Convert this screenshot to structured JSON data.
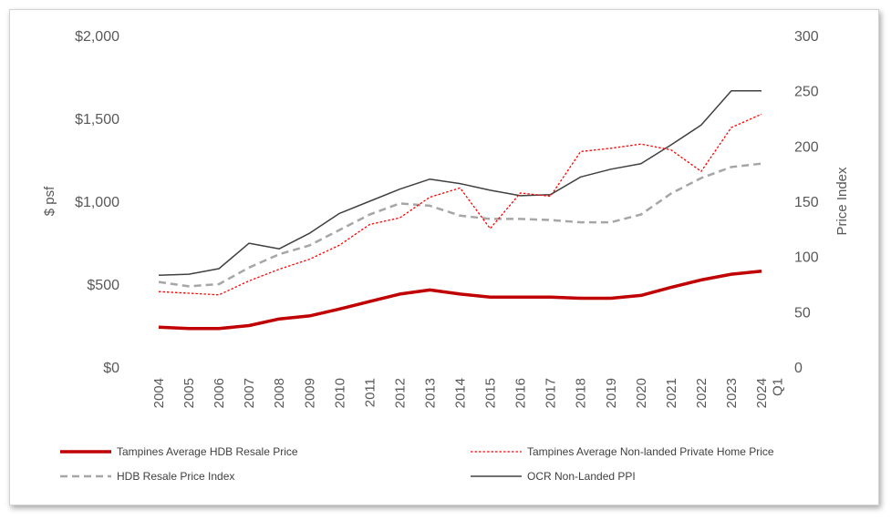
{
  "chart_data": {
    "type": "line",
    "categories": [
      "2004",
      "2005",
      "2006",
      "2007",
      "2008",
      "2009",
      "2010",
      "2011",
      "2012",
      "2013",
      "2014",
      "2015",
      "2016",
      "2017",
      "2018",
      "2019",
      "2020",
      "2021",
      "2022",
      "2023",
      "Q1 2024"
    ],
    "ylabel_left": "$ psf",
    "ylabel_right": "Price Index",
    "ylim_left": [
      0,
      2000
    ],
    "ylim_right": [
      0,
      300
    ],
    "yticks_left": [
      "$0",
      "$500",
      "$1,000",
      "$1,500",
      "$2,000"
    ],
    "yticks_right": [
      "0",
      "50",
      "100",
      "150",
      "200",
      "250",
      "300"
    ],
    "grid": false,
    "legend_position": "bottom",
    "series": [
      {
        "name": "Tampines Average HDB Resale Price",
        "axis": "left",
        "color": "#c00000",
        "style": "solid-thick",
        "values": [
          240,
          232,
          232,
          250,
          290,
          308,
          350,
          395,
          440,
          465,
          440,
          422,
          422,
          422,
          415,
          415,
          432,
          480,
          525,
          560,
          578
        ]
      },
      {
        "name": "Tampines Average Non-landed Private Home Price",
        "axis": "left",
        "color": "#ff0000",
        "style": "dotted",
        "values": [
          455,
          445,
          435,
          520,
          590,
          650,
          735,
          860,
          900,
          1025,
          1080,
          835,
          1050,
          1030,
          1300,
          1320,
          1345,
          1310,
          1180,
          1445,
          1525
        ]
      },
      {
        "name": "HDB Resale Price Index",
        "axis": "right",
        "color": "#a6a6a6",
        "style": "dashed",
        "values": [
          77,
          73,
          75,
          90,
          102,
          110,
          124,
          138,
          148,
          146,
          137,
          134,
          134,
          133,
          131,
          131,
          138,
          157,
          171,
          181,
          184
        ]
      },
      {
        "name": "OCR Non-Landed PPI",
        "axis": "right",
        "color": "#404040",
        "style": "solid",
        "values": [
          83,
          84,
          89,
          112,
          107,
          121,
          139,
          150,
          161,
          170,
          166,
          160,
          155,
          156,
          172,
          179,
          184,
          201,
          219,
          250,
          250
        ]
      }
    ]
  }
}
